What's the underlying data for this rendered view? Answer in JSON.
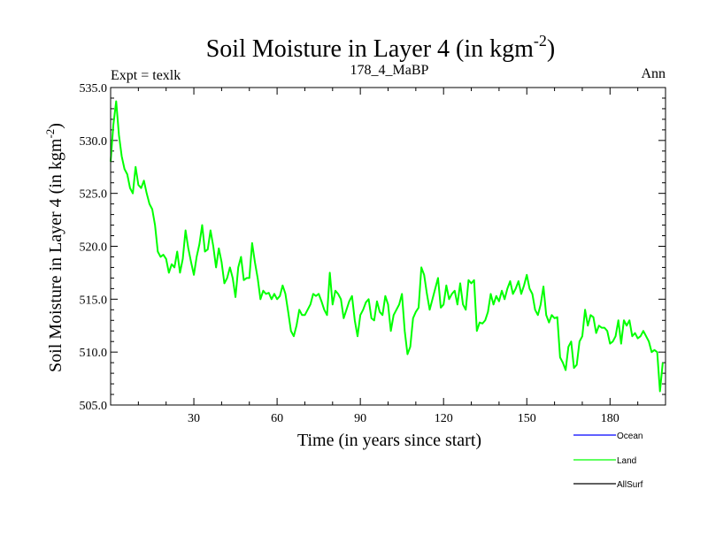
{
  "chart_data": {
    "type": "line",
    "title": "Soil Moisture in Layer 4 (in kgm",
    "title_superscript": "-2",
    "title_suffix": ")",
    "subtitle_left": "Expt = texlk",
    "subtitle_center": "178_4_MaBP",
    "subtitle_right": "Ann",
    "xlabel": "Time (in years since start)",
    "ylabel": "Soil Moisture in Layer 4 (in kgm",
    "ylabel_superscript": "-2",
    "ylabel_suffix": ")",
    "xlim": [
      0,
      200
    ],
    "ylim": [
      505,
      535
    ],
    "xticks": [
      30,
      60,
      90,
      120,
      150,
      180
    ],
    "xtick_labels": [
      "30",
      "60",
      "90",
      "120",
      "150",
      "180"
    ],
    "yticks": [
      505,
      510,
      515,
      520,
      525,
      530,
      535
    ],
    "ytick_labels": [
      "505.0",
      "510.0",
      "515.0",
      "520.0",
      "525.0",
      "530.0",
      "535.0"
    ],
    "legend_position": "bottom-right",
    "series": [
      {
        "name": "Ocean",
        "color": "#0000ff",
        "values": []
      },
      {
        "name": "Land",
        "color": "#00ff00",
        "x": [
          0,
          1,
          2,
          3,
          4,
          5,
          6,
          7,
          8,
          9,
          10,
          11,
          12,
          13,
          14,
          15,
          16,
          17,
          18,
          19,
          20,
          21,
          22,
          23,
          24,
          25,
          26,
          27,
          28,
          29,
          30,
          31,
          32,
          33,
          34,
          35,
          36,
          37,
          38,
          39,
          40,
          41,
          42,
          43,
          44,
          45,
          46,
          47,
          48,
          49,
          50,
          51,
          52,
          53,
          54,
          55,
          56,
          57,
          58,
          59,
          60,
          61,
          62,
          63,
          64,
          65,
          66,
          67,
          68,
          69,
          70,
          71,
          72,
          73,
          74,
          75,
          76,
          77,
          78,
          79,
          80,
          81,
          82,
          83,
          84,
          85,
          86,
          87,
          88,
          89,
          90,
          91,
          92,
          93,
          94,
          95,
          96,
          97,
          98,
          99,
          100,
          101,
          102,
          103,
          104,
          105,
          106,
          107,
          108,
          109,
          110,
          111,
          112,
          113,
          114,
          115,
          116,
          117,
          118,
          119,
          120,
          121,
          122,
          123,
          124,
          125,
          126,
          127,
          128,
          129,
          130,
          131,
          132,
          133,
          134,
          135,
          136,
          137,
          138,
          139,
          140,
          141,
          142,
          143,
          144,
          145,
          146,
          147,
          148,
          149,
          150,
          151,
          152,
          153,
          154,
          155,
          156,
          157,
          158,
          159,
          160,
          161,
          162,
          163,
          164,
          165,
          166,
          167,
          168,
          169,
          170,
          171,
          172,
          173,
          174,
          175,
          176,
          177,
          178,
          179,
          180,
          181,
          182,
          183,
          184,
          185,
          186,
          187,
          188,
          189,
          190,
          191,
          192,
          193,
          194,
          195,
          196,
          197,
          198,
          199
        ],
        "values": [
          528.0,
          531.5,
          533.7,
          530.5,
          528.5,
          527.3,
          526.8,
          525.5,
          525.0,
          527.5,
          525.8,
          525.5,
          526.2,
          525.0,
          524.0,
          523.5,
          522.0,
          519.5,
          519.0,
          519.2,
          518.8,
          517.5,
          518.3,
          518.0,
          519.5,
          517.5,
          518.8,
          521.5,
          519.8,
          518.5,
          517.3,
          519.0,
          520.2,
          522.0,
          519.5,
          519.7,
          521.5,
          520.0,
          518.0,
          519.8,
          518.5,
          516.5,
          517.0,
          518.0,
          517.0,
          515.2,
          518.0,
          519.0,
          516.8,
          517.0,
          517.0,
          520.3,
          518.5,
          517.0,
          515.0,
          515.8,
          515.5,
          515.6,
          515.0,
          515.5,
          515.0,
          515.3,
          516.3,
          515.5,
          513.8,
          512.0,
          511.5,
          512.5,
          514.0,
          513.5,
          513.5,
          514.0,
          514.5,
          515.5,
          515.3,
          515.5,
          514.8,
          514.0,
          513.5,
          517.5,
          514.5,
          515.8,
          515.5,
          515.0,
          513.2,
          514.0,
          514.8,
          515.3,
          513.0,
          511.5,
          513.5,
          514.0,
          514.7,
          515.0,
          513.2,
          513.0,
          514.8,
          513.8,
          513.5,
          515.3,
          514.5,
          512.0,
          513.5,
          514.0,
          514.5,
          515.5,
          512.0,
          509.8,
          510.5,
          513.2,
          513.8,
          514.2,
          518.0,
          517.3,
          515.5,
          514.0,
          515.0,
          516.0,
          517.0,
          514.2,
          514.5,
          516.3,
          515.0,
          515.5,
          515.8,
          514.5,
          516.5,
          514.5,
          514.0,
          516.8,
          516.5,
          516.8,
          512.0,
          512.8,
          512.7,
          513.0,
          513.8,
          515.5,
          514.5,
          515.3,
          514.8,
          515.8,
          515.0,
          516.0,
          516.7,
          515.5,
          516.0,
          516.7,
          515.5,
          516.3,
          517.3,
          516.0,
          515.5,
          514.0,
          513.5,
          514.5,
          516.2,
          513.5,
          512.8,
          513.5,
          513.2,
          513.3,
          509.5,
          509.0,
          508.3,
          510.5,
          511.0,
          508.5,
          508.8,
          511.0,
          511.5,
          514.0,
          512.5,
          513.5,
          513.3,
          511.8,
          512.5,
          512.3,
          512.3,
          512.0,
          510.8,
          511.0,
          511.5,
          513.0,
          510.8,
          513.0,
          512.5,
          513.0,
          511.5,
          511.8,
          511.3,
          511.5,
          512.0,
          511.5,
          511.0,
          510.0,
          510.2,
          510.0,
          506.3,
          509.0
        ]
      },
      {
        "name": "AllSurf",
        "color": "#000000",
        "values": []
      }
    ]
  }
}
